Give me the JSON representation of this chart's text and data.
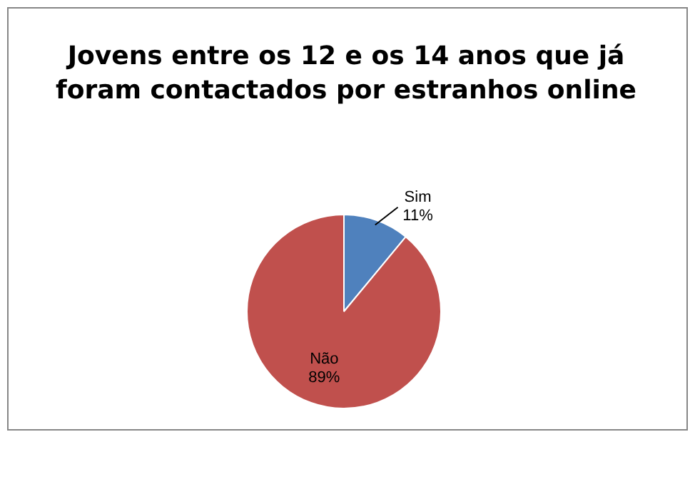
{
  "chart_data": {
    "type": "pie",
    "title": "Jovens entre os 12 e os 14 anos que já foram contactados por estranhos online",
    "categories": [
      "Sim",
      "Não"
    ],
    "values": [
      11,
      89
    ],
    "colors": [
      "#4f81bd",
      "#c0504d"
    ],
    "value_labels": [
      "11%",
      "89%"
    ],
    "legend": false
  }
}
